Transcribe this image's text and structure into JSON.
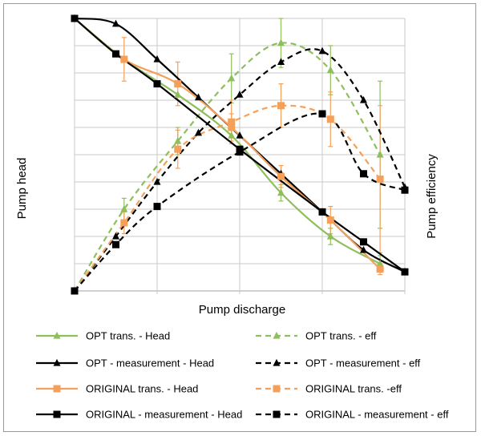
{
  "chart_data": {
    "type": "line",
    "title": "",
    "xlabel": "Pump discharge",
    "ylabel_left": "Pump head",
    "ylabel_right": "Pump efficiency",
    "xlim": [
      0,
      40
    ],
    "ylim": [
      0,
      100
    ],
    "grid": {
      "horizontal": true,
      "vertical": true
    },
    "legend_position": "bottom",
    "series": [
      {
        "name": "OPT trans. - Head",
        "color": "#8fbf5a",
        "line_style": "solid",
        "marker": "triangle",
        "points": [
          [
            0,
            100
          ],
          [
            6,
            85
          ],
          [
            12.5,
            72
          ],
          [
            19,
            57
          ],
          [
            25,
            36
          ],
          [
            31,
            20
          ],
          [
            37,
            10
          ]
        ],
        "error_bars": [
          null,
          null,
          null,
          null,
          [
            3,
            3
          ],
          [
            3,
            3
          ],
          [
            3,
            3
          ]
        ]
      },
      {
        "name": "OPT trans. - eff",
        "color": "#8fbf5a",
        "line_style": "dashed",
        "marker": "triangle",
        "points": [
          [
            0,
            0
          ],
          [
            6,
            30
          ],
          [
            12.5,
            55
          ],
          [
            19,
            78
          ],
          [
            25,
            91
          ],
          [
            31,
            81
          ],
          [
            37,
            50
          ]
        ],
        "error_bars": [
          null,
          [
            4,
            4
          ],
          [
            5,
            5
          ],
          [
            9,
            9
          ],
          [
            9,
            9
          ],
          [
            9,
            9
          ],
          [
            27,
            27
          ]
        ]
      },
      {
        "name": "OPT - measurement - Head",
        "color": "#000000",
        "line_style": "solid",
        "marker": "triangle",
        "points": [
          [
            0,
            100
          ],
          [
            5,
            98
          ],
          [
            10,
            85
          ],
          [
            15,
            71
          ],
          [
            20,
            57
          ],
          [
            25,
            43
          ],
          [
            30,
            29
          ],
          [
            35,
            15
          ],
          [
            40,
            7
          ]
        ]
      },
      {
        "name": "OPT - measurement - eff",
        "color": "#000000",
        "line_style": "dashed",
        "marker": "triangle",
        "points": [
          [
            0,
            0
          ],
          [
            5,
            20
          ],
          [
            10,
            40
          ],
          [
            15,
            58
          ],
          [
            20,
            72
          ],
          [
            25,
            84
          ],
          [
            30,
            88
          ],
          [
            35,
            70
          ],
          [
            40,
            38
          ]
        ]
      },
      {
        "name": "ORIGINAL trans. - Head",
        "color": "#f5a05a",
        "line_style": "solid",
        "marker": "square",
        "points": [
          [
            0,
            100
          ],
          [
            6,
            85
          ],
          [
            12.5,
            76
          ],
          [
            19,
            60
          ],
          [
            25,
            42
          ],
          [
            31,
            26
          ],
          [
            37,
            8
          ]
        ],
        "error_bars": [
          null,
          [
            8,
            8
          ],
          [
            8,
            8
          ],
          [
            5,
            5
          ],
          [
            4,
            4
          ],
          [
            5,
            5
          ],
          [
            2,
            2
          ]
        ]
      },
      {
        "name": "ORIGINAL trans. -eff",
        "color": "#f5a05a",
        "line_style": "dashed",
        "marker": "square",
        "points": [
          [
            0,
            0
          ],
          [
            6,
            25
          ],
          [
            12.5,
            52
          ],
          [
            19,
            62
          ],
          [
            25,
            68
          ],
          [
            31,
            63
          ],
          [
            37,
            41
          ]
        ],
        "error_bars": [
          null,
          [
            4,
            4
          ],
          [
            7,
            7
          ],
          [
            8,
            8
          ],
          [
            8,
            8
          ],
          [
            10,
            10
          ],
          [
            27,
            27
          ]
        ]
      },
      {
        "name": "ORIGINAL - measurement - Head",
        "color": "#000000",
        "line_style": "solid",
        "marker": "square",
        "points": [
          [
            0,
            100
          ],
          [
            5,
            87
          ],
          [
            10,
            76
          ],
          [
            20,
            52
          ],
          [
            30,
            29
          ],
          [
            35,
            18
          ],
          [
            40,
            7
          ]
        ]
      },
      {
        "name": "ORIGINAL - measurement - eff",
        "color": "#000000",
        "line_style": "dashed",
        "marker": "square",
        "points": [
          [
            0,
            0
          ],
          [
            5,
            17
          ],
          [
            10,
            31
          ],
          [
            20,
            51
          ],
          [
            30,
            65
          ],
          [
            35,
            43
          ],
          [
            40,
            37
          ]
        ]
      }
    ]
  }
}
